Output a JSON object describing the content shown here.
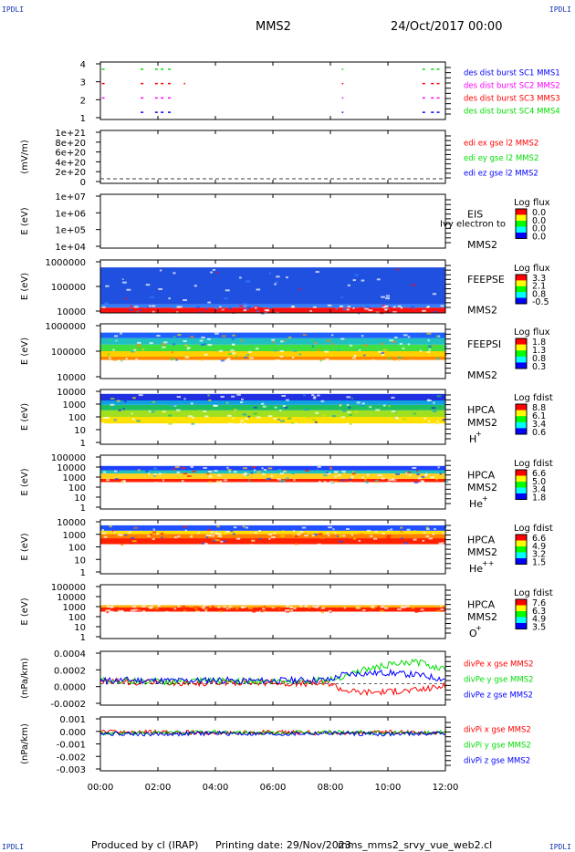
{
  "corner_label": "IPDLI",
  "header": {
    "spacecraft": "MMS2",
    "date": "24/Oct/2017 00:00"
  },
  "footer": {
    "produced": "Produced by cl (IRAP)",
    "printing": "Printing date: 29/Nov/2023",
    "file": "mms_mms2_srvy_vue_web2.cl"
  },
  "colors": {
    "red": "#ff0000",
    "green": "#00dd00",
    "blue": "#0000ff",
    "magenta": "#ff00ff",
    "frame": "#000000"
  },
  "chart_data": {
    "type": "multi-panel time series",
    "x": {
      "ticks": [
        "00:00",
        "02:00",
        "04:00",
        "06:00",
        "08:00",
        "10:00",
        "12:00"
      ],
      "range_hours": [
        0,
        12
      ]
    },
    "panels": [
      {
        "kind": "timeline",
        "ylim": [
          0.5,
          4.5
        ],
        "yticks": [
          "1",
          "2",
          "3",
          "4"
        ],
        "ylabel": "",
        "legend": [
          {
            "label": "des dist burst SC1 MMS1",
            "color": "#0000ff"
          },
          {
            "label": "des dist burst SC2 MMS2",
            "color": "#ff00ff"
          },
          {
            "label": "des dist burst SC3 MMS3",
            "color": "#ff0000"
          },
          {
            "label": "des dist burst SC4 MMS4",
            "color": "#00dd00"
          }
        ],
        "intervals": [
          {
            "level": 4,
            "color": "#00dd00",
            "spans": [
              [
                0.05,
                0.15
              ],
              [
                1.4,
                1.5
              ],
              [
                1.9,
                2.0
              ],
              [
                2.1,
                2.25
              ],
              [
                2.35,
                2.5
              ],
              [
                8.4,
                8.45
              ],
              [
                11.2,
                11.3
              ],
              [
                11.5,
                11.6
              ],
              [
                11.7,
                11.8
              ]
            ]
          },
          {
            "level": 3,
            "color": "#ff0000",
            "spans": [
              [
                0.05,
                0.15
              ],
              [
                1.4,
                1.5
              ],
              [
                1.9,
                2.0
              ],
              [
                2.1,
                2.25
              ],
              [
                2.35,
                2.5
              ],
              [
                2.9,
                2.95
              ],
              [
                8.4,
                8.45
              ],
              [
                11.2,
                11.3
              ],
              [
                11.5,
                11.6
              ],
              [
                11.7,
                11.8
              ]
            ]
          },
          {
            "level": 2,
            "color": "#ff00ff",
            "spans": [
              [
                0.05,
                0.15
              ],
              [
                1.4,
                1.5
              ],
              [
                1.9,
                2.0
              ],
              [
                2.1,
                2.25
              ],
              [
                2.35,
                2.5
              ],
              [
                8.4,
                8.45
              ],
              [
                11.2,
                11.3
              ],
              [
                11.5,
                11.6
              ],
              [
                11.7,
                11.8
              ]
            ]
          },
          {
            "level": 1,
            "color": "#0000ff",
            "spans": [
              [
                1.4,
                1.5
              ],
              [
                1.9,
                2.0
              ],
              [
                2.1,
                2.25
              ],
              [
                2.35,
                2.5
              ],
              [
                8.4,
                8.45
              ],
              [
                11.2,
                11.3
              ],
              [
                11.5,
                11.6
              ],
              [
                11.7,
                11.8
              ]
            ]
          }
        ]
      },
      {
        "kind": "line",
        "ylabel": "(mV/m)",
        "yticks": [
          "0",
          "2e+20",
          "4e+20",
          "6e+20",
          "8e+20",
          "1e+21"
        ],
        "legend": [
          {
            "label": "edi ex gse l2 MMS2",
            "color": "#ff0000"
          },
          {
            "label": "edi ey gse l2 MMS2",
            "color": "#00dd00"
          },
          {
            "label": "edi ez gse l2 MMS2",
            "color": "#0000ff"
          }
        ],
        "note": "all components ~0 (dashed zero line)"
      },
      {
        "kind": "spectrogram",
        "ylabel": "E (eV)",
        "yticks": [
          "1e+04",
          "1e+05",
          "1e+06",
          "1e+07"
        ],
        "instrument": "EIS",
        "instrument_extra": "Ivy electron to",
        "spacecraft": "MMS2",
        "colorbar": {
          "title": "Log flux",
          "ticks": [
            "0.0",
            "0.0",
            "0.0",
            "0.0"
          ]
        },
        "note": "no data"
      },
      {
        "kind": "spectrogram",
        "ylabel": "E (eV)",
        "yticks": [
          "10000",
          "100000",
          "1000000"
        ],
        "instrument": "FEEPSE",
        "spacecraft": "MMS2",
        "colorbar": {
          "title": "Log flux",
          "ticks": [
            "3.3",
            "2.1",
            "0.8",
            "-0.5"
          ]
        },
        "bands": [
          {
            "from": 0.0,
            "to": 0.1,
            "color": "#ff1010"
          },
          {
            "from": 0.1,
            "to": 0.16,
            "color": "#3080ff"
          },
          {
            "from": 0.16,
            "to": 0.86,
            "color": "#2050e0"
          }
        ]
      },
      {
        "kind": "spectrogram",
        "ylabel": "E (eV)",
        "yticks": [
          "10000",
          "100000",
          "1000000"
        ],
        "instrument": "FEEPSI",
        "spacecraft": "MMS2",
        "colorbar": {
          "title": "Log flux",
          "ticks": [
            "1.8",
            "1.3",
            "0.8",
            "0.3"
          ]
        },
        "bands": [
          {
            "from": 0.34,
            "to": 0.4,
            "color": "#ff8800"
          },
          {
            "from": 0.4,
            "to": 0.5,
            "color": "#ffd000"
          },
          {
            "from": 0.5,
            "to": 0.62,
            "color": "#40e040"
          },
          {
            "from": 0.62,
            "to": 0.74,
            "color": "#20c0c0"
          },
          {
            "from": 0.74,
            "to": 0.84,
            "color": "#2060ff"
          }
        ]
      },
      {
        "kind": "spectrogram",
        "ylabel": "E (eV)",
        "yticks": [
          "1",
          "10",
          "100",
          "1000",
          "10000"
        ],
        "instrument": "HPCA",
        "spacecraft": "MMS2",
        "species": "H",
        "species_sup": "+",
        "colorbar": {
          "title": "Log fdist",
          "ticks": [
            "8.8",
            "6.1",
            "3.4",
            "0.6"
          ]
        },
        "bands": [
          {
            "from": 0.38,
            "to": 0.5,
            "color": "#ffe000"
          },
          {
            "from": 0.5,
            "to": 0.62,
            "color": "#a0e020"
          },
          {
            "from": 0.62,
            "to": 0.72,
            "color": "#20c060"
          },
          {
            "from": 0.72,
            "to": 0.8,
            "color": "#10a0e0"
          },
          {
            "from": 0.8,
            "to": 0.92,
            "color": "#2030e0"
          }
        ]
      },
      {
        "kind": "spectrogram",
        "ylabel": "E (eV)",
        "yticks": [
          "1",
          "10",
          "100",
          "1000",
          "10000",
          "100000"
        ],
        "instrument": "HPCA",
        "spacecraft": "MMS2",
        "species": "He",
        "species_sup": "+",
        "colorbar": {
          "title": "Log fdist",
          "ticks": [
            "6.6",
            "5.0",
            "3.4",
            "1.8"
          ]
        },
        "bands": [
          {
            "from": 0.5,
            "to": 0.56,
            "color": "#ff2000"
          },
          {
            "from": 0.56,
            "to": 0.66,
            "color": "#ffd020"
          },
          {
            "from": 0.66,
            "to": 0.72,
            "color": "#20c0c0"
          },
          {
            "from": 0.72,
            "to": 0.8,
            "color": "#2040ff"
          }
        ]
      },
      {
        "kind": "spectrogram",
        "ylabel": "E (eV)",
        "yticks": [
          "1",
          "10",
          "100",
          "1000",
          "10000"
        ],
        "instrument": "HPCA",
        "spacecraft": "MMS2",
        "species": "He",
        "species_sup": "++",
        "colorbar": {
          "title": "Log fdist",
          "ticks": [
            "6.6",
            "4.9",
            "3.2",
            "1.5"
          ]
        },
        "bands": [
          {
            "from": 0.55,
            "to": 0.66,
            "color": "#ff2000"
          },
          {
            "from": 0.66,
            "to": 0.74,
            "color": "#ff8000"
          },
          {
            "from": 0.74,
            "to": 0.8,
            "color": "#ffe000"
          },
          {
            "from": 0.8,
            "to": 0.9,
            "color": "#2050ff"
          }
        ]
      },
      {
        "kind": "spectrogram",
        "ylabel": "E (eV)",
        "yticks": [
          "1",
          "10",
          "100",
          "1000",
          "10000",
          "100000"
        ],
        "instrument": "HPCA",
        "spacecraft": "MMS2",
        "species": "O",
        "species_sup": "+",
        "colorbar": {
          "title": "Log fdist",
          "ticks": [
            "7.6",
            "6.3",
            "4.9",
            "3.5"
          ]
        },
        "bands": [
          {
            "from": 0.5,
            "to": 0.58,
            "color": "#ff2000"
          },
          {
            "from": 0.58,
            "to": 0.62,
            "color": "#ffb000"
          }
        ]
      },
      {
        "kind": "line",
        "ylabel": "(nPa/km)",
        "yticks": [
          "-0.0002",
          "0.0000",
          "0.0002",
          "0.0004"
        ],
        "ylim": [
          -0.0003,
          0.00045
        ],
        "legend": [
          {
            "label": "divPe x gse MMS2",
            "color": "#ff0000"
          },
          {
            "label": "divPe y gse MMS2",
            "color": "#00dd00"
          },
          {
            "label": "divPe z gse MMS2",
            "color": "#0000ff"
          }
        ],
        "series": [
          {
            "name": "divPe x gse MMS2",
            "color": "#ff0000",
            "x": [
              0,
              1,
              2,
              3,
              4,
              5,
              6,
              7,
              8,
              8.4,
              9,
              10,
              11,
              12
            ],
            "y": [
              3e-05,
              2e-05,
              1e-05,
              1e-05,
              1e-05,
              2e-05,
              1e-05,
              0.0,
              1e-05,
              -8e-05,
              -0.00012,
              -0.00011,
              -9e-05,
              -3e-05
            ]
          },
          {
            "name": "divPe y gse MMS2",
            "color": "#00dd00",
            "x": [
              0,
              1,
              2,
              3,
              4,
              5,
              6,
              7,
              8,
              8.4,
              9,
              10,
              11,
              12
            ],
            "y": [
              5e-05,
              4e-05,
              3e-05,
              3e-05,
              4e-05,
              4e-05,
              3e-05,
              4e-05,
              5e-05,
              0.0001,
              0.00018,
              0.00026,
              0.0003,
              0.0002
            ]
          },
          {
            "name": "divPe z gse MMS2",
            "color": "#0000ff",
            "x": [
              0,
              1,
              2,
              3,
              4,
              5,
              6,
              7,
              8,
              8.4,
              9,
              10,
              11,
              12
            ],
            "y": [
              4e-05,
              5e-05,
              4e-05,
              4e-05,
              5e-05,
              4e-05,
              4e-05,
              5e-05,
              5e-05,
              0.00012,
              0.00014,
              0.00015,
              0.00012,
              6e-05
            ]
          }
        ]
      },
      {
        "kind": "line",
        "ylabel": "(nPa/km)",
        "yticks": [
          "-0.003",
          "-0.002",
          "-0.001",
          "0.000",
          "0.001"
        ],
        "ylim": [
          -0.0035,
          0.0015
        ],
        "legend": [
          {
            "label": "divPi x gse MMS2",
            "color": "#ff0000"
          },
          {
            "label": "divPi y gse MMS2",
            "color": "#00dd00"
          },
          {
            "label": "divPi z gse MMS2",
            "color": "#0000ff"
          }
        ],
        "series": [
          {
            "name": "divPi x gse MMS2",
            "color": "#ff0000",
            "x": [
              0,
              2,
              4,
              6,
              8,
              10,
              12
            ],
            "y": [
              0.0001,
              0.0001,
              0.0,
              0.0001,
              0.0,
              0.0001,
              0.0
            ]
          },
          {
            "name": "divPi y gse MMS2",
            "color": "#00dd00",
            "x": [
              0,
              2,
              4,
              6,
              8,
              10,
              12
            ],
            "y": [
              0.0,
              0.0,
              0.0001,
              0.0,
              0.0001,
              0.0,
              0.0001
            ]
          },
          {
            "name": "divPi z gse MMS2",
            "color": "#0000ff",
            "x": [
              0,
              2,
              4,
              6,
              8,
              10,
              12
            ],
            "y": [
              0.0,
              -0.0001,
              0.0,
              -0.0001,
              0.0,
              -0.0001,
              0.0
            ]
          }
        ]
      }
    ]
  }
}
